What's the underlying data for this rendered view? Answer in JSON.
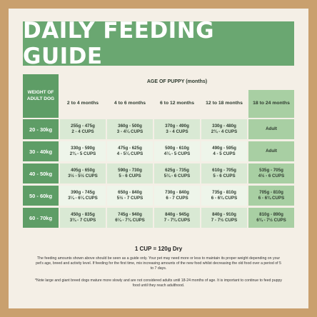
{
  "title": "DAILY FEEDING GUIDE",
  "table": {
    "weight_header": "WEIGHT OF ADULT DOG",
    "age_header": "AGE OF PUPPY (months)",
    "columns": [
      {
        "label": "2 to 4 months"
      },
      {
        "label": "4 to 6 months"
      },
      {
        "label": "6 to 12 months"
      },
      {
        "label": "12 to 18 months"
      },
      {
        "label": "18 to 24 months"
      }
    ],
    "rows": [
      {
        "weight": "20 - 30kg",
        "cells": [
          {
            "grams": "255g - 475g",
            "cups": "2 - 4 CUPS"
          },
          {
            "grams": "360g - 500g",
            "cups": "3 - 4¼ CUPS"
          },
          {
            "grams": "370g - 490g",
            "cups": "3 - 4 CUPS"
          },
          {
            "grams": "330g - 480g",
            "cups": "2¾ - 4 CUPS"
          },
          {
            "grams": "Adult",
            "cups": ""
          }
        ]
      },
      {
        "weight": "30 - 40kg",
        "cells": [
          {
            "grams": "330g - 590g",
            "cups": "2¾ - 5 CUPS"
          },
          {
            "grams": "475g - 625g",
            "cups": "4 - 5¼ CUPS"
          },
          {
            "grams": "500g - 610g",
            "cups": "4¼ - 5 CUPS"
          },
          {
            "grams": "490g - 595g",
            "cups": "4 - 5 CUPS"
          },
          {
            "grams": "Adult",
            "cups": ""
          }
        ]
      },
      {
        "weight": "40 - 50kg",
        "cells": [
          {
            "grams": "405g - 650g",
            "cups": "3½ - 5½ CUPS"
          },
          {
            "grams": "590g - 730g",
            "cups": "5 - 6 CUPS"
          },
          {
            "grams": "625g - 735g",
            "cups": "5¼ - 6 CUPS"
          },
          {
            "grams": "610g - 705g",
            "cups": "5 - 6 CUPS"
          },
          {
            "grams": "535g - 705g",
            "cups": "4½ - 6 CUPS"
          }
        ]
      },
      {
        "weight": "50 - 60kg",
        "cells": [
          {
            "grams": "390g - 745g",
            "cups": "3¼ - 6¼ CUPS"
          },
          {
            "grams": "650g - 840g",
            "cups": "5½ - 7 CUPS"
          },
          {
            "grams": "730g - 840g",
            "cups": "6 - 7 CUPS"
          },
          {
            "grams": "735g - 810g",
            "cups": "6 - 6¾ CUPS"
          },
          {
            "grams": "705g - 810g",
            "cups": "6 - 6¾ CUPS"
          }
        ]
      },
      {
        "weight": "60 - 70kg",
        "cells": [
          {
            "grams": "450g - 835g",
            "cups": "3¾ - 7 CUPS"
          },
          {
            "grams": "745g - 940g",
            "cups": "6¼ - 7¾ CUPS"
          },
          {
            "grams": "840g - 945g",
            "cups": "7 - 7¾ CUPS"
          },
          {
            "grams": "840g - 910g",
            "cups": "7 - 7½ CUPS"
          },
          {
            "grams": "810g - 890g",
            "cups": "6¾ - 7½ CUPS"
          }
        ]
      }
    ]
  },
  "cup_note": "1 CUP = 120g Dry",
  "notes": [
    "The feeding amounts shown above should be seen as a guide only. Your pet may need more or less to maintain its proper weight depending on your pet's age, breed and activity level. If feeding for the first time, mix increasing amounts of the new food whilst decreasing the old food over a period of 5 to 7 days.",
    "*Note large and giant breed dogs mature more slowly and are not considered adults until 18-24 months of age. It is important to continue to feed puppy food until they reach adulthood."
  ],
  "colors": {
    "border": "#c9a06e",
    "panel": "#f4efe6",
    "banner": "#6aa771",
    "weight_cells": "#5e9d66",
    "row_alt": "#d9e9d4",
    "last_column": "#a8cfa3"
  }
}
